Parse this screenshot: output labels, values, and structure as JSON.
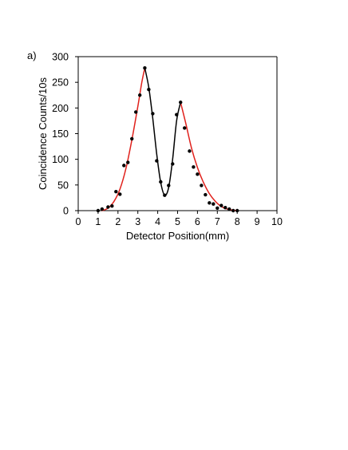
{
  "chart_data": {
    "type": "scatter",
    "panel_label": "a)",
    "title": "",
    "xlabel": "Detector Position(mm)",
    "ylabel": "Coincidence Counts/10s",
    "xlim": [
      0,
      10
    ],
    "ylim": [
      0,
      300
    ],
    "xticks": [
      0,
      1,
      2,
      3,
      4,
      5,
      6,
      7,
      8,
      9,
      10
    ],
    "yticks": [
      0,
      50,
      100,
      150,
      200,
      250,
      300
    ],
    "grid": false,
    "legend": "none",
    "colors": {
      "points": "#000000",
      "outer_fit": "#e0201b",
      "inner_fit": "#000000",
      "axis": "#000000"
    },
    "series": [
      {
        "kind": "points",
        "x": [
          1.0,
          1.2,
          1.5,
          1.7,
          1.9,
          2.1,
          2.3,
          2.5,
          2.7,
          2.9,
          3.1,
          3.35,
          3.55,
          3.75,
          3.95,
          4.15,
          4.35,
          4.55,
          4.75,
          4.95,
          5.15,
          5.35,
          5.6,
          5.8,
          6.0,
          6.2,
          6.4,
          6.6,
          6.8,
          7.0,
          7.2,
          7.4,
          7.6,
          7.8,
          8.0
        ],
        "y": [
          0,
          3,
          7,
          9,
          37,
          32,
          88,
          94,
          140,
          192,
          225,
          278,
          236,
          189,
          97,
          56,
          30,
          49,
          91,
          187,
          211,
          161,
          116,
          85,
          71,
          49,
          31,
          15,
          13,
          5,
          10,
          6,
          3,
          0,
          0
        ]
      },
      {
        "kind": "fit",
        "segment": "left",
        "x": [
          1.2,
          1.5,
          1.8,
          2.1,
          2.4,
          2.7,
          3.0,
          3.2,
          3.35
        ],
        "y": [
          0,
          5,
          18,
          42,
          82,
          138,
          203,
          250,
          278
        ]
      },
      {
        "kind": "fit",
        "segment": "middle",
        "x": [
          3.35,
          3.55,
          3.75,
          3.95,
          4.15,
          4.35,
          4.55,
          4.75,
          4.95,
          5.15
        ],
        "y": [
          278,
          240,
          180,
          110,
          55,
          30,
          45,
          100,
          175,
          211
        ]
      },
      {
        "kind": "fit",
        "segment": "right",
        "x": [
          5.15,
          5.4,
          5.7,
          6.0,
          6.3,
          6.6,
          6.9,
          7.2,
          7.5,
          7.8,
          8.0
        ],
        "y": [
          211,
          172,
          122,
          84,
          55,
          33,
          18,
          8,
          3,
          1,
          0
        ]
      }
    ]
  }
}
